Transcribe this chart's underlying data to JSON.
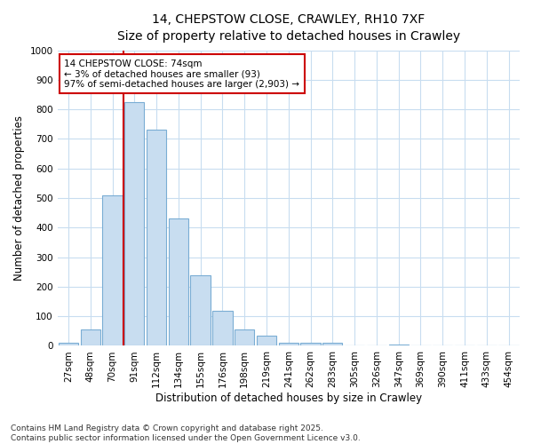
{
  "title_line1": "14, CHEPSTOW CLOSE, CRAWLEY, RH10 7XF",
  "title_line2": "Size of property relative to detached houses in Crawley",
  "xlabel": "Distribution of detached houses by size in Crawley",
  "ylabel": "Number of detached properties",
  "bar_color": "#c8ddf0",
  "bar_edge_color": "#7aadd4",
  "background_color": "#ffffff",
  "grid_color": "#c8ddf0",
  "vline_color": "#cc0000",
  "vline_x": 2,
  "annotation_text": "14 CHEPSTOW CLOSE: 74sqm\n← 3% of detached houses are smaller (93)\n97% of semi-detached houses are larger (2,903) →",
  "annotation_box_color": "#ffffff",
  "annotation_box_edge": "#cc0000",
  "categories": [
    "27sqm",
    "48sqm",
    "70sqm",
    "91sqm",
    "112sqm",
    "134sqm",
    "155sqm",
    "176sqm",
    "198sqm",
    "219sqm",
    "241sqm",
    "262sqm",
    "283sqm",
    "305sqm",
    "326sqm",
    "347sqm",
    "369sqm",
    "390sqm",
    "411sqm",
    "433sqm",
    "454sqm"
  ],
  "values": [
    10,
    55,
    510,
    825,
    730,
    430,
    240,
    120,
    55,
    35,
    10,
    10,
    10,
    0,
    0,
    5,
    0,
    0,
    0,
    0,
    0
  ],
  "vline_bin_index": 2,
  "ylim": [
    0,
    1000
  ],
  "yticks": [
    0,
    100,
    200,
    300,
    400,
    500,
    600,
    700,
    800,
    900,
    1000
  ],
  "footer_text": "Contains HM Land Registry data © Crown copyright and database right 2025.\nContains public sector information licensed under the Open Government Licence v3.0.",
  "title_fontsize": 10,
  "subtitle_fontsize": 9,
  "axis_label_fontsize": 8.5,
  "tick_fontsize": 7.5,
  "annotation_fontsize": 7.5,
  "footer_fontsize": 6.5
}
